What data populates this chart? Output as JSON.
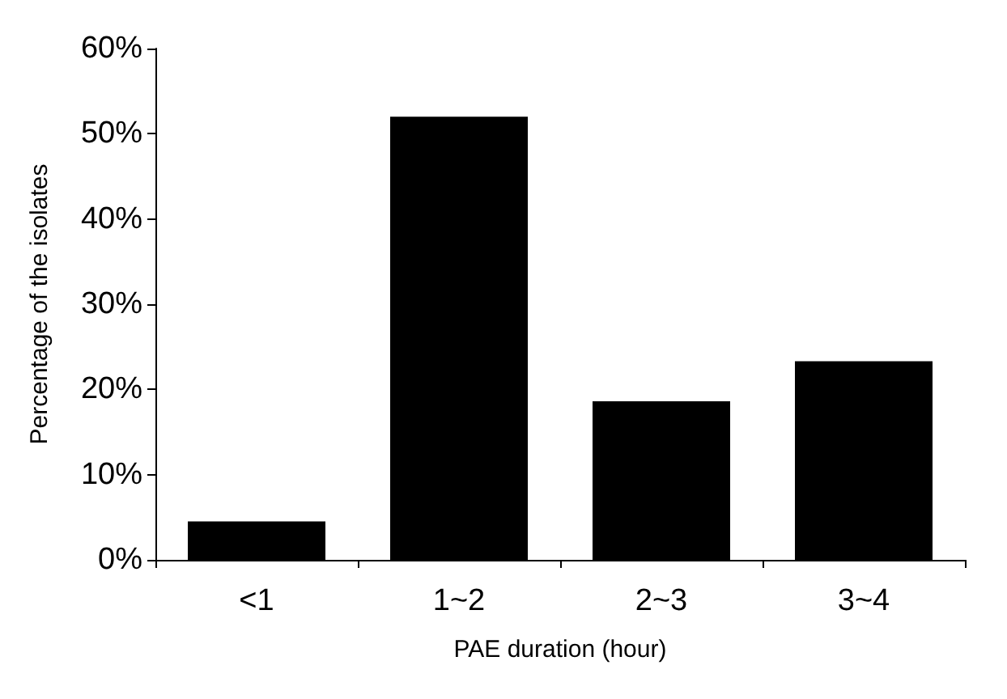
{
  "chart_data": {
    "type": "bar",
    "xlabel": "PAE duration (hour)",
    "ylabel": "Percentage of the isolates",
    "categories": [
      "<1",
      "1~2",
      "2~3",
      "3~4"
    ],
    "values": [
      4.5,
      52,
      18.6,
      23.3
    ],
    "color": "#000000",
    "ylim": [
      0,
      60
    ],
    "yticks": [
      {
        "value": 0,
        "label": "0%"
      },
      {
        "value": 10,
        "label": "10%"
      },
      {
        "value": 20,
        "label": "20%"
      },
      {
        "value": 30,
        "label": "30%"
      },
      {
        "value": 40,
        "label": "40%"
      },
      {
        "value": 50,
        "label": "50%"
      },
      {
        "value": 60,
        "label": "60%"
      }
    ],
    "grid": false
  }
}
